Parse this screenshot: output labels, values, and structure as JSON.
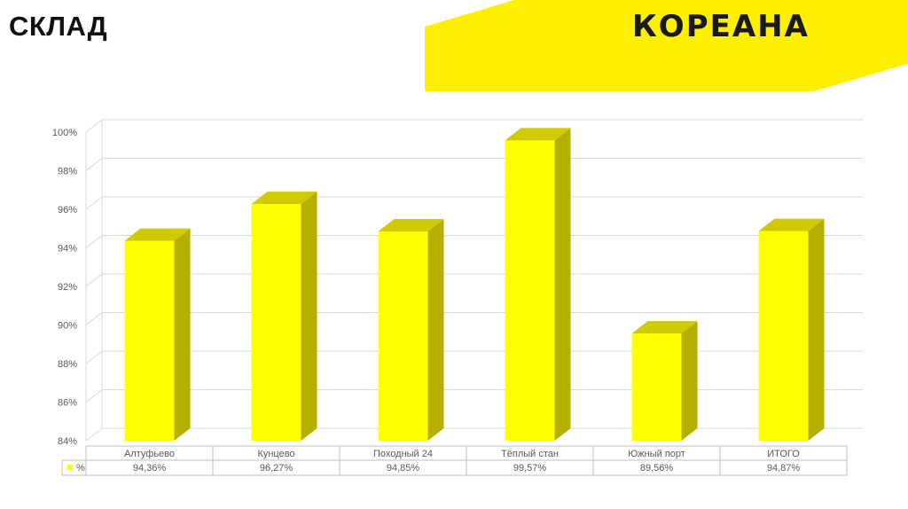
{
  "slide": {
    "title": "СКЛАД",
    "logo": "КОРЕАНА",
    "colors": {
      "accent": "#FFEF00",
      "bar_front": "#FFFF00",
      "bar_side": "#B5B000",
      "bar_top": "#CFCB00"
    }
  },
  "chart_data": {
    "type": "bar",
    "categories": [
      "Алтуфьево",
      "Кунцево",
      "Походный 24",
      "Тёплый стан",
      "Южный порт",
      "ИТОГО"
    ],
    "series": [
      {
        "name": "%",
        "values": [
          94.36,
          96.27,
          94.85,
          99.57,
          89.56,
          94.87
        ]
      }
    ],
    "table_values": [
      "94,36%",
      "96,27%",
      "94,85%",
      "99,57%",
      "89,56%",
      "94,87%"
    ],
    "yticks": [
      "84%",
      "86%",
      "88%",
      "90%",
      "92%",
      "94%",
      "96%",
      "98%",
      "100%"
    ],
    "ylim": [
      84,
      100
    ],
    "grid": true,
    "style": "3d-column",
    "data_table": true
  }
}
